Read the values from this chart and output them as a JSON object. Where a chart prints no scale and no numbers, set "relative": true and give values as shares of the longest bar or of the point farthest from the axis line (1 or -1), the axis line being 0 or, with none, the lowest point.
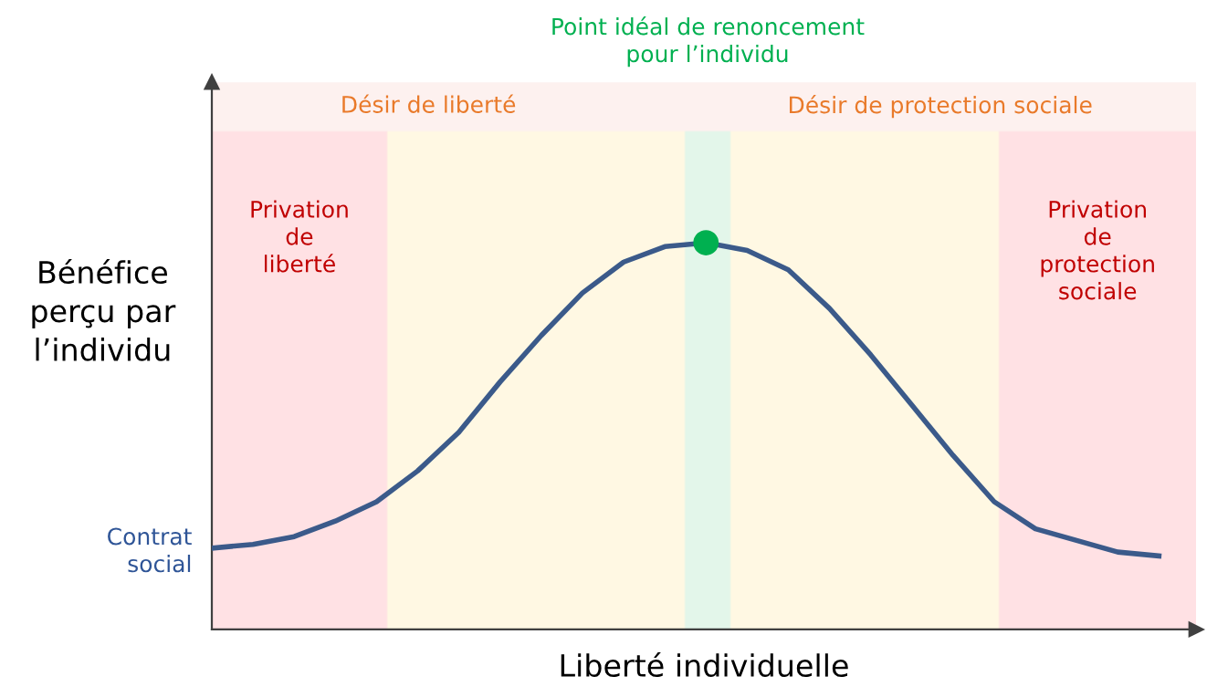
{
  "chart_data": {
    "type": "line",
    "relative": true,
    "xlabel": "Liberté individuelle",
    "ylabel": "Bénéfice\nperçu par\nl’individu",
    "categories": [
      null,
      null,
      null,
      null,
      null,
      null,
      null,
      null,
      null,
      null,
      null,
      null,
      null,
      null,
      null,
      null,
      null,
      null,
      null,
      null,
      null,
      null,
      null,
      null
    ],
    "series": [
      {
        "color": "#3b5a8a",
        "values": [
          0.21,
          0.22,
          0.24,
          0.28,
          0.33,
          0.41,
          0.51,
          0.64,
          0.76,
          0.87,
          0.95,
          0.99,
          1,
          0.98,
          0.93,
          0.83,
          0.71,
          0.58,
          0.45,
          0.33,
          0.26,
          0.23,
          0.2,
          0.19
        ]
      }
    ],
    "annotations": [
      "Point idéal de renoncement\npour l’individu",
      "Désir de liberté",
      "Désir de protection sociale",
      "Privation\nde\nliberté",
      "Privation\nde\nprotection\nsociale",
      "Contrat\nsocial"
    ]
  }
}
